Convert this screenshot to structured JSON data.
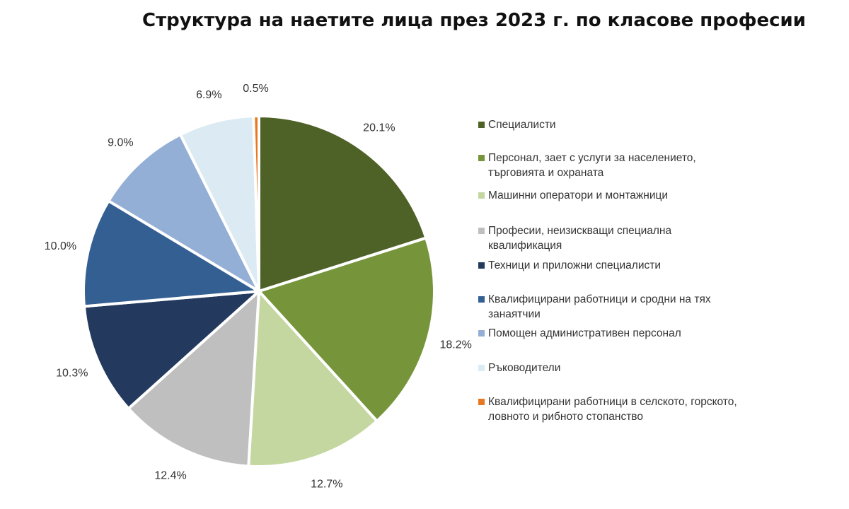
{
  "chart_data": {
    "type": "pie",
    "title": "Структура на наетите лица през 2023 г. по класове професии",
    "legend_position": "right",
    "slices": [
      {
        "name": "Специалисти",
        "value": 20.1,
        "label": "20.1%",
        "color": "#4e6126"
      },
      {
        "name": "Персонал, зает с услуги за населението, търговията и охраната",
        "value": 18.2,
        "label": "18.2%",
        "color": "#76953a"
      },
      {
        "name": "Машинни оператори и монтажници",
        "value": 12.7,
        "label": "12.7%",
        "color": "#c4d7a0"
      },
      {
        "name": "Професии, неизискващи специална квалификация",
        "value": 12.4,
        "label": "12.4%",
        "color": "#bfbfbf"
      },
      {
        "name": "Техници и приложни специалисти",
        "value": 10.3,
        "label": "10.3%",
        "color": "#233a5e"
      },
      {
        "name": "Квалифицирани работници и сродни на тях занаятчии",
        "value": 10.0,
        "label": "10.0%",
        "color": "#345f92"
      },
      {
        "name": "Помощен административен персонал",
        "value": 9.0,
        "label": "9.0%",
        "color": "#93afd6"
      },
      {
        "name": "Ръководители",
        "value": 6.9,
        "label": "6.9%",
        "color": "#dcebf3"
      },
      {
        "name": "Квалифицирани работници в селското, горското, ловното и рибното стопанство",
        "value": 0.5,
        "label": "0.5%",
        "color": "#e87722"
      }
    ]
  }
}
